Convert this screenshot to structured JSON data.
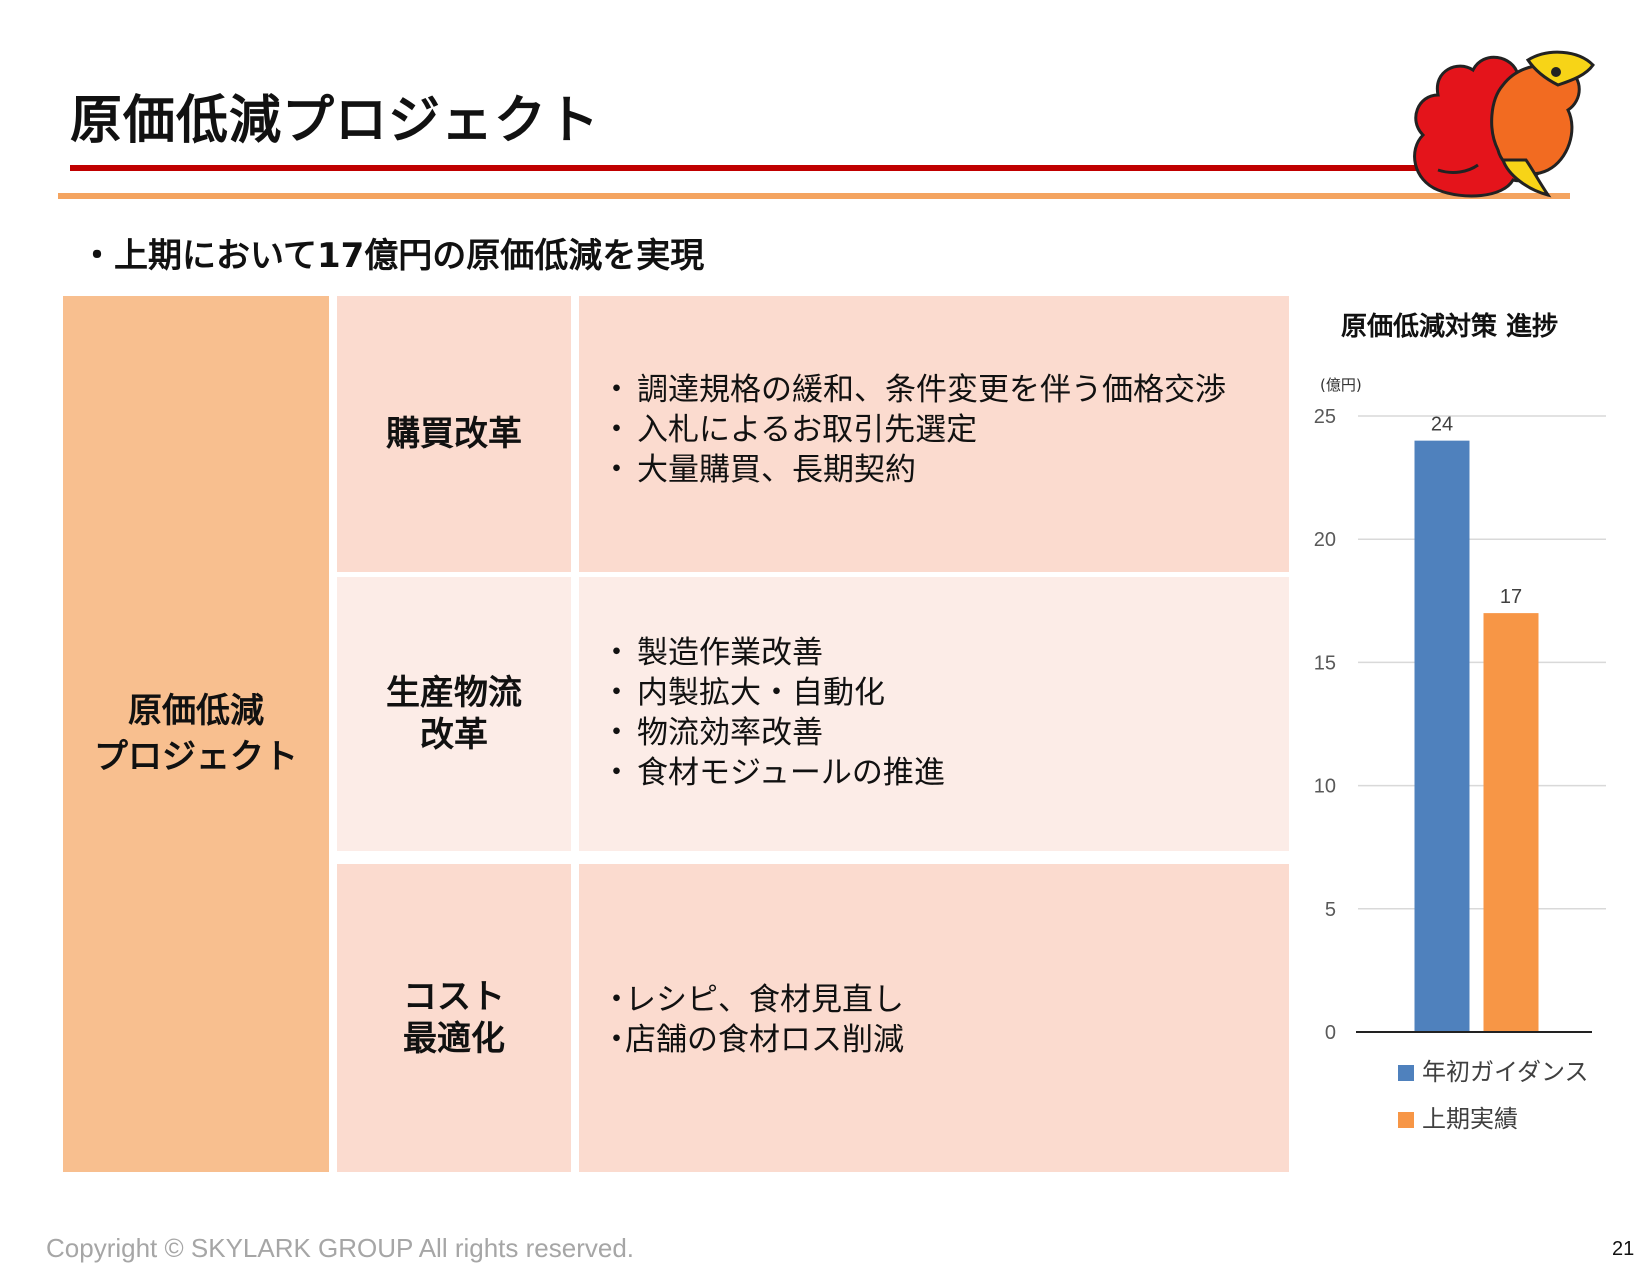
{
  "header": {
    "title": "原価低減プロジェクト"
  },
  "summary": {
    "text": "・上期において17億円の原価低減を実現"
  },
  "table": {
    "main_label": "原価低減\nプロジェクト",
    "rows": [
      {
        "category": "購買改革",
        "items": [
          "調達規格の緩和、条件変更を伴う価格交渉",
          "入札によるお取引先選定",
          "大量購買、長期契約"
        ]
      },
      {
        "category": "生産物流\n改革",
        "items": [
          "製造作業改善",
          "内製拡大・自動化",
          "物流効率改善",
          "食材モジュールの推進"
        ]
      },
      {
        "category": "コスト\n最適化",
        "items": [
          "レシピ、食材見直し",
          "店舗の食材ロス削減"
        ]
      }
    ],
    "bullet_spaced": "・",
    "bullet_tight": "・"
  },
  "chart_title": "原価低減対策 進捗",
  "chart_data": {
    "type": "bar",
    "unit_label": "(億円)",
    "categories": [
      "年初ガイダンス",
      "上期実績"
    ],
    "values": [
      24,
      17
    ],
    "colors": [
      "#4f81bd",
      "#f79646"
    ],
    "ylim": [
      0,
      25
    ],
    "yticks": [
      0,
      5,
      10,
      15,
      20,
      25
    ],
    "grid": true,
    "data_labels": true,
    "legend": [
      "年初ガイダンス",
      "上期実績"
    ],
    "legend_position": "bottom"
  },
  "footer": {
    "copyright": "Copyright © SKYLARK GROUP All rights reserved.",
    "page": "21"
  }
}
